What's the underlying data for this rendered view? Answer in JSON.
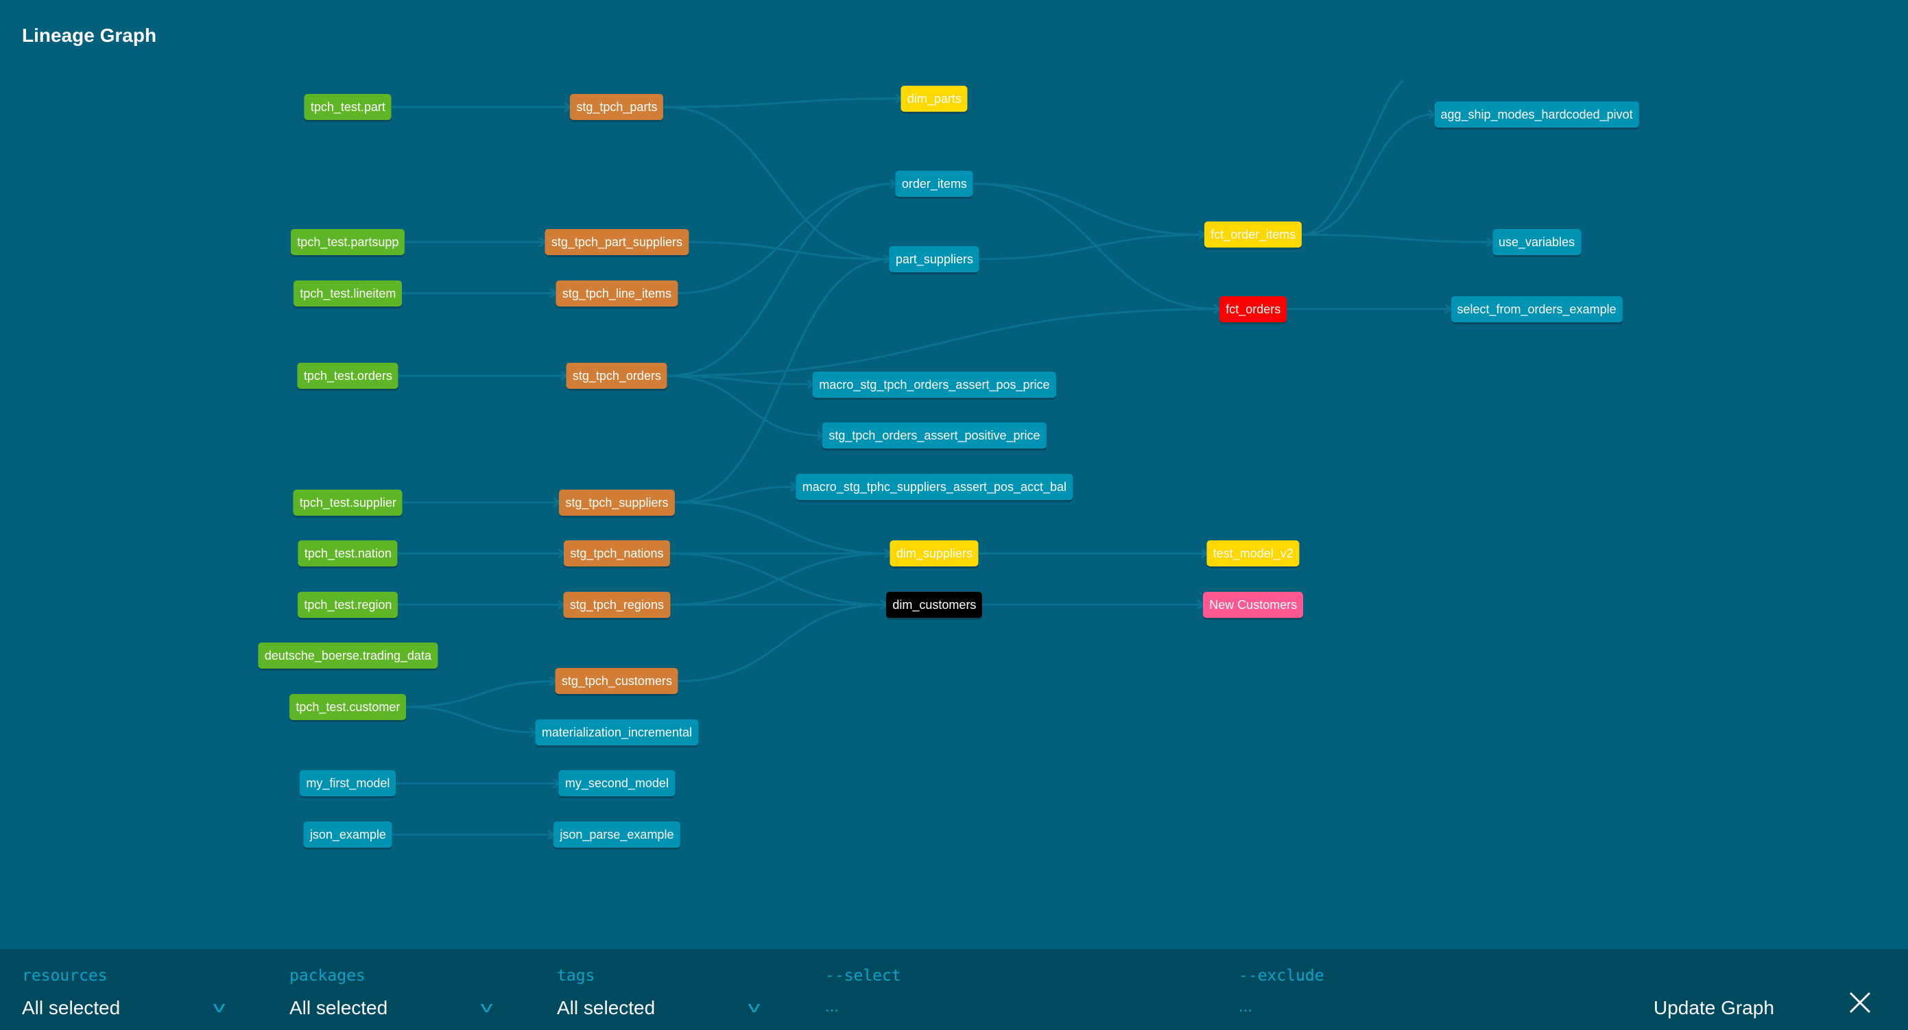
{
  "header": {
    "title": "Lineage Graph"
  },
  "colors": {
    "background": "#03607d",
    "bar": "#004a60",
    "edge": "#0a7392",
    "source": "#5eb626",
    "staging": "#d17d35",
    "model": "#0093b4",
    "yellow": "#ffd800",
    "red": "#ff0000",
    "black": "#000000",
    "pink": "#ff5890"
  },
  "graph": {
    "nodes": [
      {
        "id": "tpch_test.part",
        "type": "source"
      },
      {
        "id": "tpch_test.partsupp",
        "type": "source"
      },
      {
        "id": "tpch_test.lineitem",
        "type": "source"
      },
      {
        "id": "tpch_test.orders",
        "type": "source"
      },
      {
        "id": "tpch_test.supplier",
        "type": "source"
      },
      {
        "id": "tpch_test.nation",
        "type": "source"
      },
      {
        "id": "tpch_test.region",
        "type": "source"
      },
      {
        "id": "deutsche_boerse.trading_data",
        "type": "source"
      },
      {
        "id": "tpch_test.customer",
        "type": "source"
      },
      {
        "id": "my_first_model",
        "type": "model"
      },
      {
        "id": "json_example",
        "type": "model"
      },
      {
        "id": "stg_tpch_parts",
        "type": "staging"
      },
      {
        "id": "stg_tpch_part_suppliers",
        "type": "staging"
      },
      {
        "id": "stg_tpch_line_items",
        "type": "staging"
      },
      {
        "id": "stg_tpch_orders",
        "type": "staging"
      },
      {
        "id": "stg_tpch_suppliers",
        "type": "staging"
      },
      {
        "id": "stg_tpch_nations",
        "type": "staging"
      },
      {
        "id": "stg_tpch_regions",
        "type": "staging"
      },
      {
        "id": "stg_tpch_customers",
        "type": "staging"
      },
      {
        "id": "materialization_incremental",
        "type": "model"
      },
      {
        "id": "my_second_model",
        "type": "model"
      },
      {
        "id": "json_parse_example",
        "type": "model"
      },
      {
        "id": "dim_parts",
        "type": "yellow"
      },
      {
        "id": "order_items",
        "type": "model"
      },
      {
        "id": "part_suppliers",
        "type": "model"
      },
      {
        "id": "macro_stg_tpch_orders_assert_pos_price",
        "type": "model"
      },
      {
        "id": "stg_tpch_orders_assert_positive_price",
        "type": "model"
      },
      {
        "id": "macro_stg_tphc_suppliers_assert_pos_acct_bal",
        "type": "model"
      },
      {
        "id": "dim_suppliers",
        "type": "yellow"
      },
      {
        "id": "dim_customers",
        "type": "black"
      },
      {
        "id": "fct_order_items",
        "type": "yellow"
      },
      {
        "id": "fct_orders",
        "type": "red"
      },
      {
        "id": "test_model_v2",
        "type": "yellow"
      },
      {
        "id": "New Customers",
        "type": "pink"
      },
      {
        "id": "agg_ship_modes_hardcoded_pivot",
        "type": "model"
      },
      {
        "id": "use_variables",
        "type": "model"
      },
      {
        "id": "select_from_orders_example",
        "type": "model"
      }
    ],
    "edges": [
      [
        "tpch_test.part",
        "stg_tpch_parts"
      ],
      [
        "tpch_test.partsupp",
        "stg_tpch_part_suppliers"
      ],
      [
        "tpch_test.lineitem",
        "stg_tpch_line_items"
      ],
      [
        "tpch_test.orders",
        "stg_tpch_orders"
      ],
      [
        "tpch_test.supplier",
        "stg_tpch_suppliers"
      ],
      [
        "tpch_test.nation",
        "stg_tpch_nations"
      ],
      [
        "tpch_test.region",
        "stg_tpch_regions"
      ],
      [
        "tpch_test.customer",
        "stg_tpch_customers"
      ],
      [
        "tpch_test.customer",
        "materialization_incremental"
      ],
      [
        "my_first_model",
        "my_second_model"
      ],
      [
        "json_example",
        "json_parse_example"
      ],
      [
        "stg_tpch_parts",
        "dim_parts"
      ],
      [
        "stg_tpch_parts",
        "part_suppliers"
      ],
      [
        "stg_tpch_part_suppliers",
        "part_suppliers"
      ],
      [
        "stg_tpch_line_items",
        "order_items"
      ],
      [
        "stg_tpch_orders",
        "order_items"
      ],
      [
        "stg_tpch_orders",
        "fct_orders"
      ],
      [
        "stg_tpch_orders",
        "macro_stg_tpch_orders_assert_pos_price"
      ],
      [
        "stg_tpch_orders",
        "stg_tpch_orders_assert_positive_price"
      ],
      [
        "stg_tpch_suppliers",
        "part_suppliers"
      ],
      [
        "stg_tpch_suppliers",
        "macro_stg_tphc_suppliers_assert_pos_acct_bal"
      ],
      [
        "stg_tpch_suppliers",
        "dim_suppliers"
      ],
      [
        "stg_tpch_nations",
        "dim_suppliers"
      ],
      [
        "stg_tpch_nations",
        "dim_customers"
      ],
      [
        "stg_tpch_regions",
        "dim_suppliers"
      ],
      [
        "stg_tpch_regions",
        "dim_customers"
      ],
      [
        "stg_tpch_customers",
        "dim_customers"
      ],
      [
        "order_items",
        "fct_order_items"
      ],
      [
        "order_items",
        "fct_orders"
      ],
      [
        "part_suppliers",
        "fct_order_items"
      ],
      [
        "fct_order_items",
        "agg_ship_modes_hardcoded_pivot"
      ],
      [
        "fct_order_items",
        "use_variables"
      ],
      [
        "fct_orders",
        "select_from_orders_example"
      ],
      [
        "dim_suppliers",
        "test_model_v2"
      ],
      [
        "dim_customers",
        "New Customers"
      ]
    ]
  },
  "filters": [
    {
      "label": "resources",
      "value": "All selected"
    },
    {
      "label": "packages",
      "value": "All selected"
    },
    {
      "label": "tags",
      "value": "All selected"
    },
    {
      "label": "--select",
      "placeholder": "..."
    },
    {
      "label": "--exclude",
      "placeholder": "..."
    }
  ],
  "actions": {
    "update_label": "Update Graph",
    "close_icon": "close-icon"
  }
}
